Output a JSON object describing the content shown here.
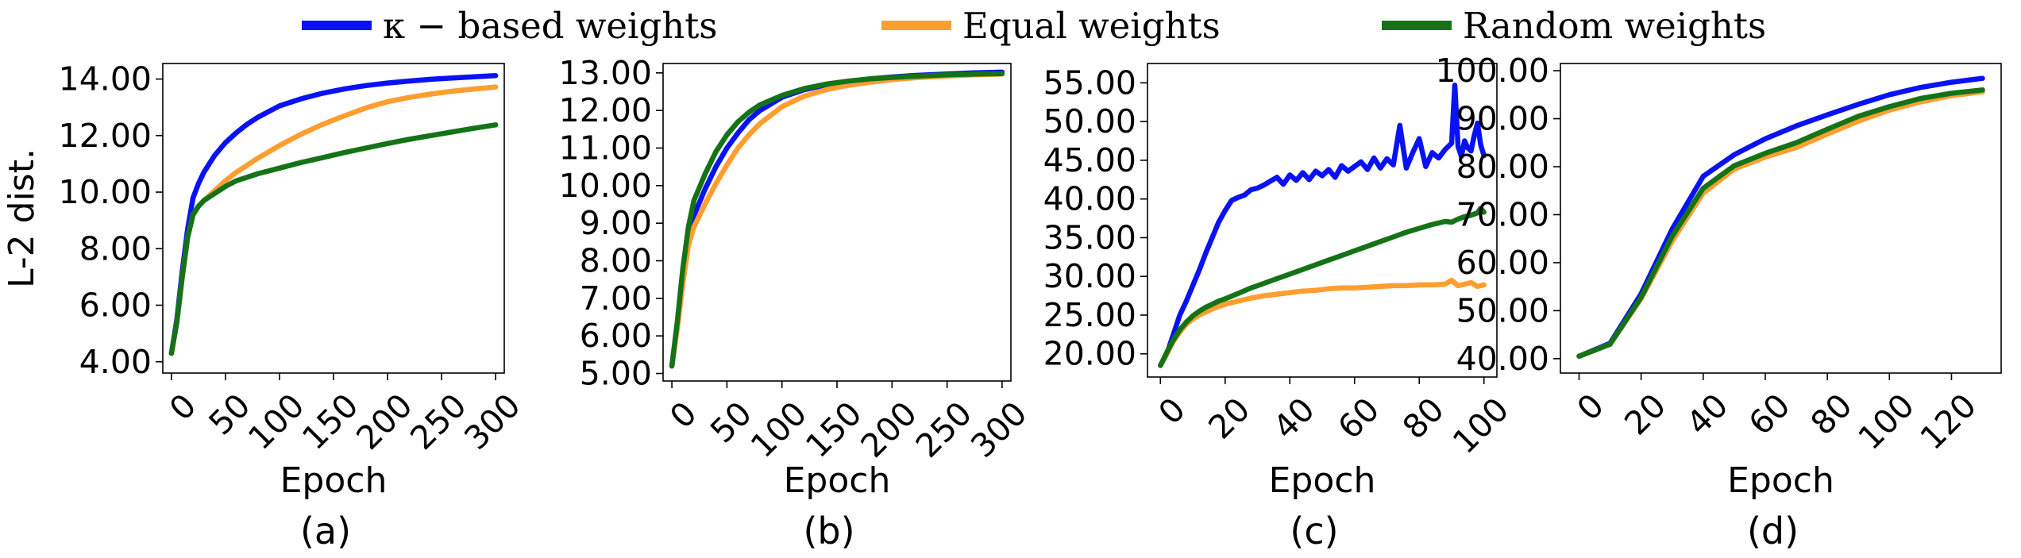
{
  "legend": {
    "items": [
      {
        "label": "κ − based weights",
        "color": "#0a12f5"
      },
      {
        "label": "Equal weights",
        "color": "#ff9e30"
      },
      {
        "label": "Random weights",
        "color": "#157317"
      }
    ]
  },
  "chart_data": [
    {
      "type": "line",
      "caption": "(a)",
      "xlabel": "Epoch",
      "ylabel": "L-2 dist.",
      "xlim": [
        -8,
        308
      ],
      "ylim": [
        3.6,
        14.55
      ],
      "xticks": [
        0,
        50,
        100,
        150,
        200,
        250,
        300
      ],
      "xtick_labels": [
        "0",
        "50",
        "100",
        "150",
        "200",
        "250",
        "300"
      ],
      "yticks": [
        4,
        6,
        8,
        10,
        12,
        14
      ],
      "ytick_labels": [
        "4.00",
        "6.00",
        "8.00",
        "10.00",
        "12.00",
        "14.00"
      ],
      "series": [
        {
          "name": "κ − based weights",
          "color": "#0a12f5",
          "x": [
            0,
            5,
            10,
            15,
            20,
            25,
            30,
            40,
            50,
            60,
            70,
            80,
            90,
            100,
            120,
            140,
            160,
            180,
            200,
            220,
            240,
            260,
            280,
            300
          ],
          "y": [
            4.3,
            5.5,
            7.2,
            8.7,
            9.8,
            10.3,
            10.7,
            11.3,
            11.75,
            12.1,
            12.4,
            12.65,
            12.85,
            13.05,
            13.3,
            13.5,
            13.65,
            13.77,
            13.86,
            13.93,
            13.99,
            14.04,
            14.08,
            14.12
          ]
        },
        {
          "name": "Equal weights",
          "color": "#ff9e30",
          "x": [
            0,
            5,
            10,
            15,
            20,
            25,
            30,
            40,
            50,
            60,
            80,
            100,
            120,
            140,
            160,
            180,
            200,
            220,
            240,
            260,
            280,
            300
          ],
          "y": [
            4.3,
            5.4,
            7.0,
            8.4,
            9.2,
            9.5,
            9.7,
            10.05,
            10.4,
            10.7,
            11.2,
            11.65,
            12.05,
            12.4,
            12.7,
            12.98,
            13.2,
            13.35,
            13.47,
            13.57,
            13.65,
            13.72
          ]
        },
        {
          "name": "Random weights",
          "color": "#157317",
          "x": [
            0,
            5,
            10,
            15,
            20,
            25,
            30,
            40,
            50,
            60,
            80,
            100,
            120,
            140,
            160,
            180,
            200,
            220,
            240,
            260,
            280,
            300
          ],
          "y": [
            4.3,
            5.4,
            7.0,
            8.4,
            9.2,
            9.5,
            9.7,
            9.95,
            10.2,
            10.4,
            10.65,
            10.85,
            11.05,
            11.22,
            11.4,
            11.56,
            11.72,
            11.87,
            12.0,
            12.13,
            12.26,
            12.38
          ]
        }
      ]
    },
    {
      "type": "line",
      "caption": "(b)",
      "xlabel": "Epoch",
      "ylabel": "",
      "xlim": [
        -8,
        308
      ],
      "ylim": [
        4.8,
        13.25
      ],
      "xticks": [
        0,
        50,
        100,
        150,
        200,
        250,
        300
      ],
      "xtick_labels": [
        "0",
        "50",
        "100",
        "150",
        "200",
        "250",
        "300"
      ],
      "yticks": [
        5,
        6,
        7,
        8,
        9,
        10,
        11,
        12,
        13
      ],
      "ytick_labels": [
        "5.00",
        "6.00",
        "7.00",
        "8.00",
        "9.00",
        "10.00",
        "11.00",
        "12.00",
        "13.00"
      ],
      "series": [
        {
          "name": "κ − based weights",
          "color": "#0a12f5",
          "x": [
            0,
            5,
            10,
            15,
            20,
            30,
            40,
            50,
            60,
            70,
            80,
            100,
            120,
            140,
            160,
            180,
            200,
            220,
            250,
            275,
            300
          ],
          "y": [
            5.2,
            6.3,
            7.6,
            8.6,
            9.2,
            9.9,
            10.5,
            11.0,
            11.4,
            11.75,
            12.0,
            12.35,
            12.55,
            12.68,
            12.77,
            12.84,
            12.89,
            12.93,
            12.97,
            13.0,
            13.02
          ]
        },
        {
          "name": "Equal weights",
          "color": "#ff9e30",
          "x": [
            0,
            5,
            10,
            15,
            20,
            30,
            40,
            50,
            60,
            70,
            80,
            100,
            120,
            140,
            160,
            180,
            200,
            220,
            250,
            275,
            300
          ],
          "y": [
            5.2,
            6.2,
            7.4,
            8.4,
            8.9,
            9.5,
            10.05,
            10.55,
            11.0,
            11.35,
            11.65,
            12.1,
            12.38,
            12.55,
            12.67,
            12.75,
            12.82,
            12.87,
            12.92,
            12.95,
            12.97
          ]
        },
        {
          "name": "Random weights",
          "color": "#157317",
          "x": [
            0,
            5,
            10,
            15,
            20,
            30,
            40,
            50,
            60,
            70,
            80,
            100,
            120,
            140,
            160,
            180,
            200,
            220,
            250,
            275,
            300
          ],
          "y": [
            5.2,
            6.4,
            7.8,
            8.9,
            9.6,
            10.3,
            10.9,
            11.35,
            11.7,
            11.95,
            12.15,
            12.4,
            12.58,
            12.7,
            12.78,
            12.84,
            12.88,
            12.91,
            12.95,
            12.97,
            12.98
          ]
        }
      ]
    },
    {
      "type": "line",
      "caption": "(c)",
      "xlabel": "Epoch",
      "ylabel": "",
      "xlim": [
        -4,
        104
      ],
      "ylim": [
        17,
        57.5
      ],
      "xticks": [
        0,
        20,
        40,
        60,
        80,
        100
      ],
      "xtick_labels": [
        "0",
        "20",
        "40",
        "60",
        "80",
        "100"
      ],
      "yticks": [
        20,
        25,
        30,
        35,
        40,
        45,
        50,
        55
      ],
      "ytick_labels": [
        "20.00",
        "25.00",
        "30.00",
        "35.00",
        "40.00",
        "45.00",
        "50.00",
        "55.00"
      ],
      "series": [
        {
          "name": "κ − based weights",
          "color": "#0a12f5",
          "x": [
            0,
            2,
            4,
            6,
            8,
            10,
            12,
            14,
            16,
            18,
            20,
            22,
            24,
            26,
            28,
            30,
            32,
            34,
            36,
            38,
            40,
            42,
            44,
            46,
            48,
            50,
            52,
            54,
            56,
            58,
            60,
            62,
            64,
            66,
            68,
            70,
            72,
            74,
            76,
            78,
            80,
            82,
            84,
            86,
            88,
            90,
            91,
            92,
            93,
            94,
            95,
            96,
            97,
            98,
            99,
            100
          ],
          "y": [
            18.5,
            20.0,
            22.5,
            25.0,
            26.8,
            28.8,
            30.8,
            33.0,
            35.0,
            37.0,
            38.5,
            39.8,
            40.2,
            40.5,
            41.2,
            41.4,
            41.8,
            42.3,
            42.8,
            41.9,
            43.1,
            42.4,
            43.4,
            42.5,
            43.6,
            43.0,
            43.8,
            42.8,
            44.3,
            43.6,
            44.2,
            44.8,
            43.8,
            45.3,
            44.0,
            45.2,
            44.4,
            49.5,
            44.0,
            46.0,
            47.8,
            44.2,
            46.0,
            45.3,
            46.4,
            47.2,
            54.7,
            46.8,
            45.5,
            47.5,
            46.6,
            46.2,
            48.2,
            49.8,
            47.0,
            45.6
          ]
        },
        {
          "name": "Equal weights",
          "color": "#ff9e30",
          "x": [
            0,
            2,
            4,
            6,
            8,
            10,
            12,
            14,
            16,
            18,
            20,
            24,
            28,
            32,
            36,
            40,
            44,
            48,
            52,
            56,
            60,
            64,
            68,
            72,
            76,
            80,
            84,
            88,
            90,
            92,
            94,
            96,
            98,
            100
          ],
          "y": [
            18.5,
            20.0,
            21.6,
            22.8,
            23.8,
            24.5,
            25.0,
            25.4,
            25.8,
            26.1,
            26.4,
            26.8,
            27.2,
            27.5,
            27.7,
            27.9,
            28.1,
            28.2,
            28.4,
            28.5,
            28.5,
            28.6,
            28.7,
            28.8,
            28.8,
            28.9,
            28.9,
            29.0,
            29.5,
            28.8,
            29.0,
            29.2,
            28.7,
            28.9
          ]
        },
        {
          "name": "Random weights",
          "color": "#157317",
          "x": [
            0,
            2,
            4,
            6,
            8,
            10,
            12,
            14,
            16,
            18,
            20,
            24,
            28,
            32,
            36,
            40,
            44,
            48,
            52,
            56,
            60,
            64,
            68,
            72,
            76,
            80,
            84,
            88,
            90,
            92,
            94,
            96,
            98,
            99,
            100
          ],
          "y": [
            18.5,
            20.2,
            21.8,
            23.1,
            24.1,
            24.9,
            25.5,
            26.0,
            26.4,
            26.8,
            27.1,
            27.8,
            28.5,
            29.1,
            29.7,
            30.3,
            30.9,
            31.5,
            32.1,
            32.7,
            33.3,
            33.9,
            34.5,
            35.1,
            35.7,
            36.2,
            36.7,
            37.1,
            37.0,
            37.4,
            37.7,
            37.9,
            38.2,
            38.8,
            38.3
          ]
        }
      ]
    },
    {
      "type": "line",
      "caption": "(d)",
      "xlabel": "Epoch",
      "ylabel": "",
      "xlim": [
        -6,
        136
      ],
      "ylim": [
        37,
        101.5
      ],
      "xticks": [
        0,
        20,
        40,
        60,
        80,
        100,
        120
      ],
      "xtick_labels": [
        "0",
        "20",
        "40",
        "60",
        "80",
        "100",
        "120"
      ],
      "yticks": [
        40,
        50,
        60,
        70,
        80,
        90,
        100
      ],
      "ytick_labels": [
        "40.00",
        "50.00",
        "60.00",
        "70.00",
        "80.00",
        "90.00",
        "100.00"
      ],
      "series": [
        {
          "name": "κ − based weights",
          "color": "#0a12f5",
          "x": [
            0,
            10,
            20,
            30,
            40,
            50,
            60,
            70,
            80,
            90,
            100,
            110,
            120,
            130
          ],
          "y": [
            40.5,
            43.2,
            53.5,
            67.0,
            78.0,
            82.5,
            85.8,
            88.5,
            90.8,
            93.0,
            95.0,
            96.5,
            97.6,
            98.4
          ]
        },
        {
          "name": "Equal weights",
          "color": "#ff9e30",
          "x": [
            0,
            10,
            20,
            30,
            40,
            50,
            60,
            70,
            80,
            90,
            100,
            110,
            120,
            130
          ],
          "y": [
            40.5,
            43.0,
            52.5,
            64.5,
            74.5,
            79.5,
            82.0,
            84.0,
            86.8,
            89.5,
            91.8,
            93.5,
            94.8,
            95.6
          ]
        },
        {
          "name": "Random weights",
          "color": "#157317",
          "x": [
            0,
            10,
            20,
            30,
            40,
            50,
            60,
            70,
            80,
            90,
            100,
            110,
            120,
            130
          ],
          "y": [
            40.5,
            43.0,
            52.8,
            65.5,
            75.5,
            80.2,
            82.8,
            85.0,
            87.8,
            90.5,
            92.5,
            94.2,
            95.3,
            96.0
          ]
        }
      ]
    }
  ]
}
